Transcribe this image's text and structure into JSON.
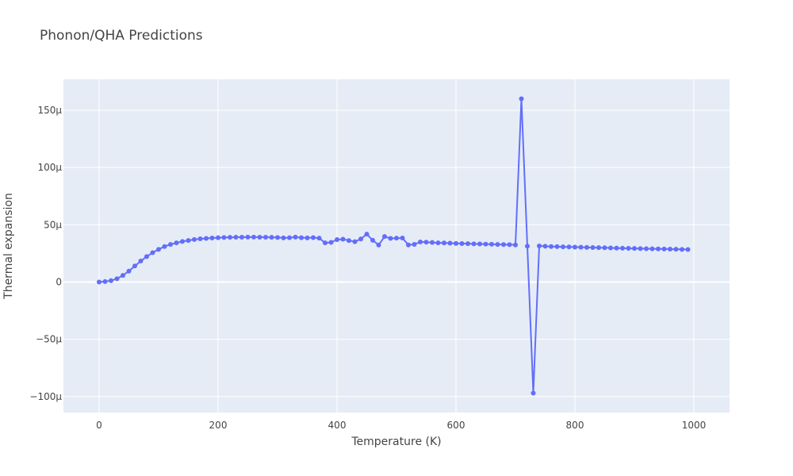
{
  "chart_data": {
    "type": "line",
    "title": "Phonon/QHA Predictions",
    "xlabel": "Temperature (K)",
    "ylabel": "Thermal expansion",
    "xlim": [
      -60,
      1060
    ],
    "ylim": [
      -114,
      177
    ],
    "x_ticks": [
      0,
      200,
      400,
      600,
      800,
      1000
    ],
    "x_tick_labels": [
      "0",
      "200",
      "400",
      "600",
      "800",
      "1000"
    ],
    "y_ticks": [
      -100,
      -50,
      0,
      50,
      100,
      150
    ],
    "y_tick_labels": [
      "−100μ",
      "−50μ",
      "0",
      "50μ",
      "100μ",
      "150μ"
    ],
    "y_unit_note": "values in μ (×1e-6)",
    "grid": true,
    "legend": "none",
    "colors": {
      "line": "#636efa",
      "plot_bg": "#e5ecf6",
      "grid": "#ffffff",
      "text": "#444444"
    },
    "series": [
      {
        "x": [
          0,
          10,
          20,
          30,
          40,
          50,
          60,
          70,
          80,
          90,
          100,
          110,
          120,
          130,
          140,
          150,
          160,
          170,
          180,
          190,
          200,
          210,
          220,
          230,
          240,
          250,
          260,
          270,
          280,
          290,
          300,
          310,
          320,
          330,
          340,
          350,
          360,
          370,
          380,
          390,
          400,
          410,
          420,
          430,
          440,
          450,
          460,
          470,
          480,
          490,
          500,
          510,
          520,
          530,
          540,
          550,
          560,
          570,
          580,
          590,
          600,
          610,
          620,
          630,
          640,
          650,
          660,
          670,
          680,
          690,
          700,
          710,
          720,
          730,
          740,
          750,
          760,
          770,
          780,
          790,
          800,
          810,
          820,
          830,
          840,
          850,
          860,
          870,
          880,
          890,
          900,
          910,
          920,
          930,
          940,
          950,
          960,
          970,
          980,
          990
        ],
        "y": [
          0,
          0.4,
          1.2,
          2.8,
          5.8,
          9.5,
          14,
          18.3,
          22.2,
          25.6,
          28.5,
          31,
          32.8,
          34.2,
          35.4,
          36.3,
          37.1,
          37.7,
          38.1,
          38.4,
          38.7,
          38.9,
          39,
          39.1,
          39.1,
          39.2,
          39.2,
          39.1,
          39.1,
          39,
          38.9,
          38.5,
          38.7,
          39.2,
          38.7,
          38.5,
          38.8,
          38.3,
          34.2,
          34.6,
          37,
          37.4,
          36.2,
          35.2,
          37.6,
          41.8,
          36.4,
          32.3,
          39.7,
          38.1,
          38.3,
          38.4,
          32.4,
          32.9,
          35,
          34.8,
          34.5,
          34.2,
          34.1,
          33.9,
          33.7,
          33.6,
          33.5,
          33.3,
          33.2,
          33.1,
          33,
          32.8,
          32.7,
          32.6,
          32.4,
          160,
          31.3,
          -97,
          31.5,
          31.2,
          31,
          30.9,
          30.7,
          30.6,
          30.5,
          30.4,
          30.2,
          30.1,
          30,
          29.9,
          29.8,
          29.6,
          29.5,
          29.4,
          29.3,
          29.2,
          29.1,
          29,
          28.9,
          28.8,
          28.7,
          28.6,
          28.5,
          28.4
        ]
      }
    ]
  }
}
